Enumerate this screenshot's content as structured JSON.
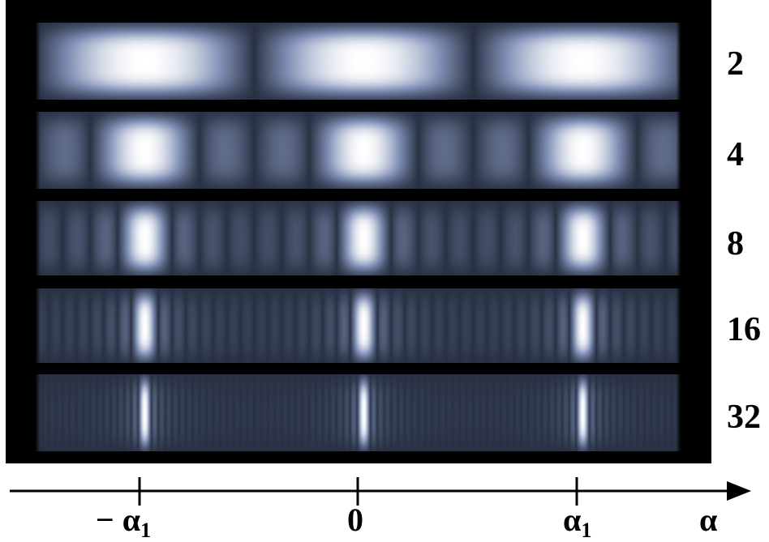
{
  "strips": [
    {
      "n": 2,
      "label": "2"
    },
    {
      "n": 4,
      "label": "4"
    },
    {
      "n": 8,
      "label": "8"
    },
    {
      "n": 16,
      "label": "16"
    },
    {
      "n": 32,
      "label": "32"
    }
  ],
  "axis": {
    "variable": "α",
    "ticks": [
      {
        "sign": "− ",
        "symbol": "α",
        "sub": "1"
      },
      {
        "sign": "",
        "symbol": "0",
        "sub": ""
      },
      {
        "sign": "",
        "symbol": "α",
        "sub": "1"
      }
    ]
  },
  "colors": {
    "frame": "#000000",
    "strip_dark": "#2b3345",
    "strip_mid": "#8393b8",
    "strip_bright": "#ffffff",
    "axis": "#000000"
  }
}
